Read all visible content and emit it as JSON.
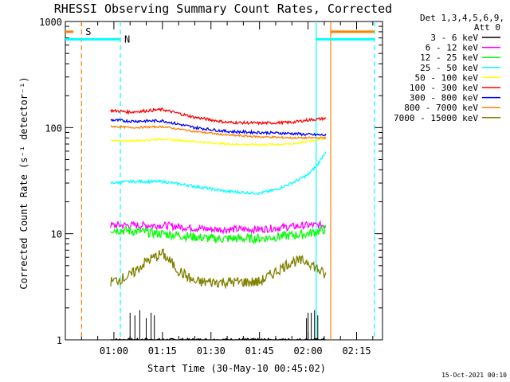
{
  "title": "RHESSI Observing Summary Count Rates, Corrected",
  "xlabel": "Start Time (30-May-10 00:45:02)",
  "ylabel": "Corrected Count Rate (s⁻¹ detector⁻¹)",
  "timestamp": "15-Oct-2021 00:10",
  "header": [
    "Det 1,3,4,5,6,9,",
    "Att 0"
  ],
  "flags": {
    "s_label": "S",
    "n_label": "N"
  },
  "chart_data": {
    "type": "line",
    "y_scale": "log",
    "ylim": [
      1,
      1000
    ],
    "xlim_minutes": [
      0,
      98
    ],
    "x_tick_labels": [
      "01:00",
      "01:15",
      "01:30",
      "01:45",
      "02:00",
      "02:15"
    ],
    "x_tick_minutes": [
      15,
      30,
      45,
      60,
      75,
      90
    ],
    "y_tick_labels": [
      "1",
      "10",
      "100",
      "1000"
    ],
    "y_tick_values": [
      1,
      10,
      100,
      1000
    ],
    "grid": false,
    "legend": "top-right, outside",
    "data_start_minute": 14,
    "data_end_minute": 80.5,
    "series": [
      {
        "name": "3 - 6 keV",
        "color": "#000000",
        "x": [
          14,
          80.5
        ],
        "y": [
          1,
          1
        ],
        "note_visible": "sporadic spikes near 01:15-01:20 and 02:00-02:05"
      },
      {
        "name": "6 - 12 keV",
        "color": "#ff00ff",
        "x": [
          14,
          30,
          45,
          60,
          75,
          80.5
        ],
        "y": [
          12,
          12,
          11,
          11,
          12,
          12
        ]
      },
      {
        "name": "12 - 25 keV",
        "color": "#00ff00",
        "x": [
          14,
          30,
          45,
          60,
          75,
          80.5
        ],
        "y": [
          11,
          10,
          9,
          9,
          10,
          11
        ]
      },
      {
        "name": "25 - 50 keV",
        "color": "#00ffff",
        "x": [
          14,
          20,
          30,
          40,
          50,
          60,
          65,
          70,
          75,
          78,
          80.5
        ],
        "y": [
          30,
          31,
          31,
          28,
          25,
          24,
          26,
          30,
          36,
          45,
          60
        ]
      },
      {
        "name": "50 - 100 keV",
        "color": "#ffff00",
        "x": [
          14,
          20,
          30,
          40,
          50,
          60,
          70,
          75,
          80.5
        ],
        "y": [
          75,
          75,
          78,
          74,
          70,
          69,
          70,
          74,
          80
        ]
      },
      {
        "name": "100 - 300 keV",
        "color": "#ff0000",
        "x": [
          14,
          20,
          30,
          40,
          50,
          60,
          70,
          75,
          80.5
        ],
        "y": [
          145,
          140,
          148,
          125,
          112,
          110,
          112,
          118,
          122
        ]
      },
      {
        "name": "300 - 800 keV",
        "color": "#0000ff",
        "x": [
          14,
          20,
          30,
          40,
          50,
          60,
          70,
          75,
          80.5
        ],
        "y": [
          118,
          115,
          116,
          100,
          92,
          90,
          88,
          86,
          85
        ]
      },
      {
        "name": "800 - 7000 keV",
        "color": "#ff8000",
        "x": [
          14,
          20,
          30,
          40,
          50,
          60,
          70,
          75,
          80.5
        ],
        "y": [
          103,
          100,
          102,
          92,
          85,
          82,
          80,
          80,
          80
        ]
      },
      {
        "name": "7000 - 15000 keV",
        "color": "#808000",
        "x": [
          14,
          20,
          25,
          30,
          35,
          40,
          50,
          60,
          70,
          75,
          80.5
        ],
        "y": [
          3.5,
          4,
          5.5,
          6.5,
          4.5,
          3.5,
          3.5,
          3.5,
          5.5,
          5.5,
          4
        ]
      }
    ],
    "markers": [
      {
        "label": "S",
        "color": "#ff8000",
        "minute": 5,
        "style": "dashed"
      },
      {
        "label": "N",
        "color": "#00ffff",
        "minute": 17,
        "style": "dashed"
      },
      {
        "color": "#00ffff",
        "minute": 77.5,
        "style": "solid"
      },
      {
        "color": "#ff8000",
        "minute": 82,
        "style": "solid"
      },
      {
        "color": "#00ffff",
        "minute": 95.5,
        "style": "dashed"
      }
    ],
    "flag_bars": [
      {
        "color": "#ff8000",
        "from_minute": 0,
        "to_minute": 2.5,
        "level": 800
      },
      {
        "color": "#00ffff",
        "from_minute": 0,
        "to_minute": 17,
        "level": 680
      },
      {
        "color": "#00ffff",
        "from_minute": 77.5,
        "to_minute": 95.5,
        "level": 680
      },
      {
        "color": "#ff8000",
        "from_minute": 82,
        "to_minute": 95.5,
        "level": 800
      }
    ]
  }
}
